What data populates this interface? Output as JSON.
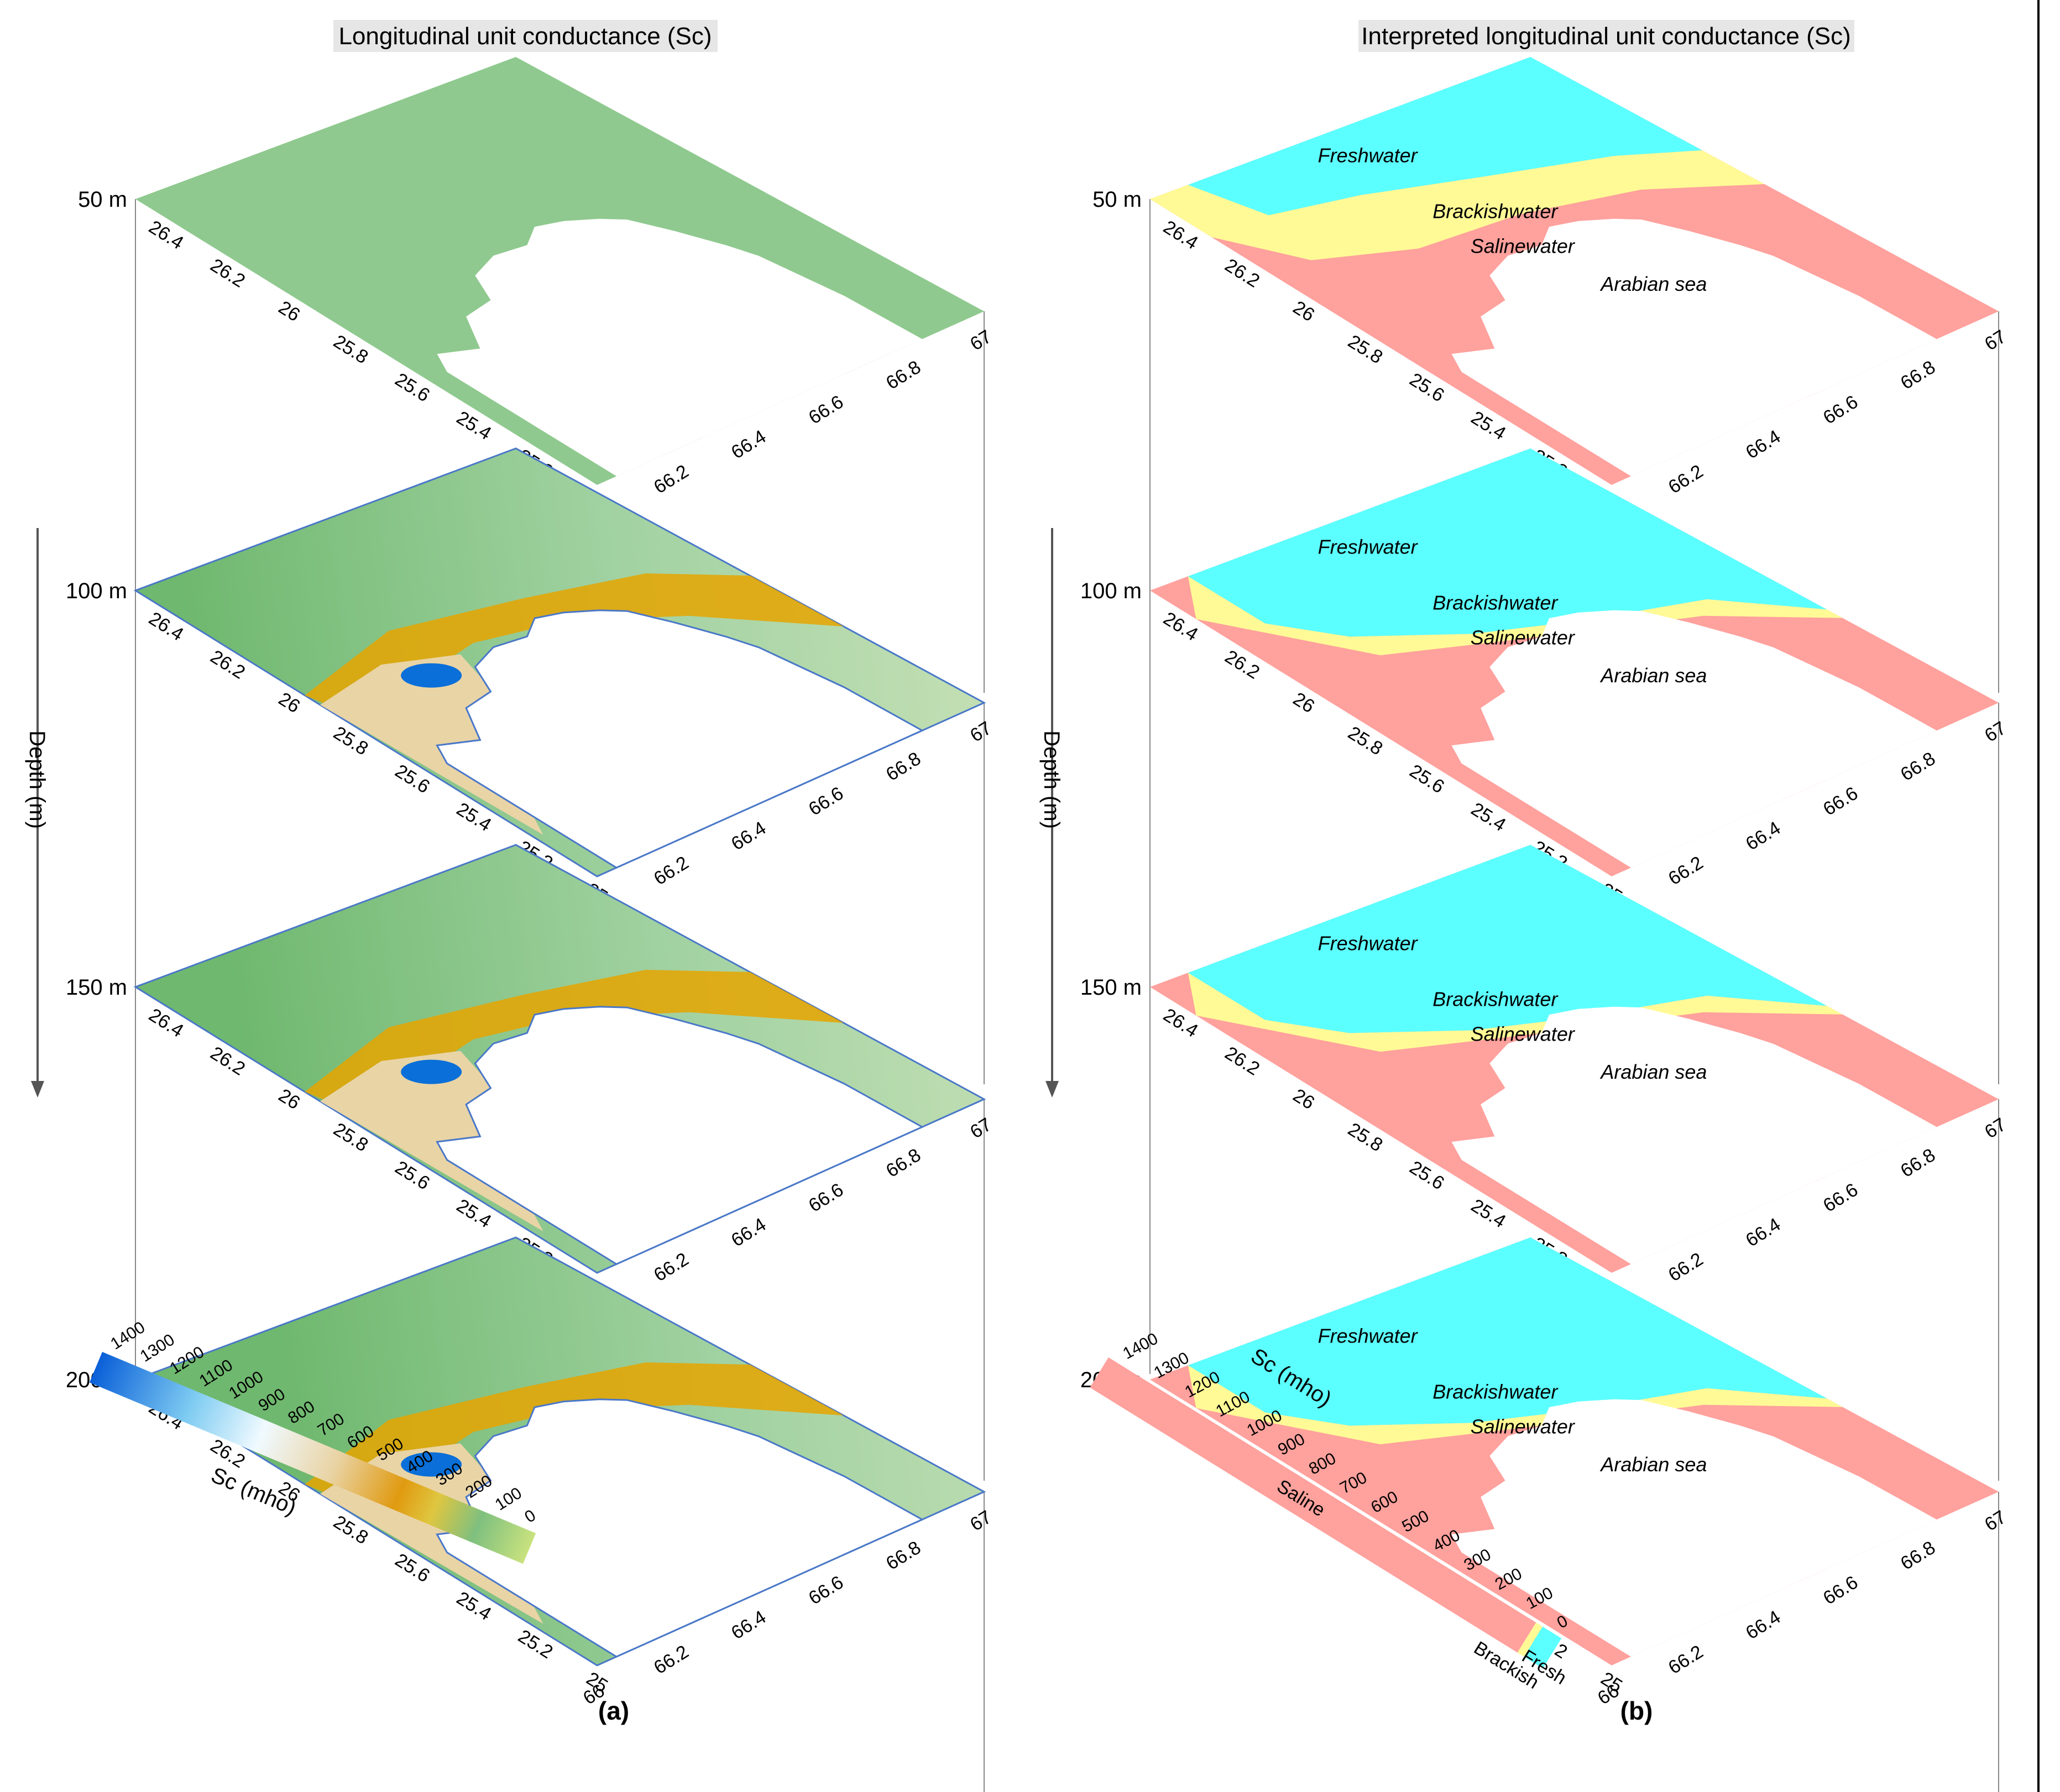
{
  "panel_a": {
    "title": "Longitudinal unit conductance (Sc)",
    "label": "(a)",
    "axis_title": "Depth (m)",
    "colorbar_label": "Sc (mho)"
  },
  "panel_b": {
    "title": "Interpreted longitudinal unit conductance (Sc)",
    "label": "(b)",
    "axis_title": "Depth (m)",
    "colorbar_label": "Sc (mho)",
    "cb_saline": "Saline",
    "cb_brackish": "Brackish",
    "cb_fresh": "Fresh"
  },
  "colors": {
    "fresh": "#5CFFFF",
    "brackish": "#FFFA96",
    "saline": "#FFA19D",
    "green": "#8FC98F",
    "lightgreen": "#A9D6A9",
    "gold": "#E6A400",
    "tan": "#E9D4A6",
    "blue": "#0A6FD8"
  },
  "chart_data": {
    "type": "heatmap",
    "layers": [
      {
        "depth": "50 m",
        "labels": {
          "fresh": "Freshwater",
          "brackish": "Brackishwater",
          "saline": "Salinewater",
          "sea": "Arabian sea"
        }
      },
      {
        "depth": "100 m",
        "labels": {
          "fresh": "Freshwater",
          "brackish": "Brackishwater",
          "saline": "Salinewater",
          "sea": "Arabian sea"
        }
      },
      {
        "depth": "150 m",
        "labels": {
          "fresh": "Freshwater",
          "brackish": "Brackishwater",
          "saline": "Salinewater",
          "sea": "Arabian sea"
        }
      },
      {
        "depth": "200 m",
        "labels": {
          "fresh": "Freshwater",
          "brackish": "Brackishwater",
          "saline": "Salinewater",
          "sea": "Arabian sea"
        }
      }
    ],
    "lat_ticks": [
      "26.4",
      "26.2",
      "26",
      "25.8",
      "25.6",
      "25.4",
      "25.2",
      "25"
    ],
    "lon_ticks": [
      "66",
      "66.2",
      "66.4",
      "66.6",
      "66.8",
      "67"
    ],
    "lat_range": [
      25,
      26.5
    ],
    "lon_range": [
      66,
      67
    ],
    "colorbar_ticks": [
      "1400",
      "1300",
      "1200",
      "1100",
      "1000",
      "900",
      "800",
      "700",
      "600",
      "500",
      "400",
      "300",
      "200",
      "100",
      "0"
    ],
    "colorbar_range": [
      0,
      1400
    ],
    "classes": [
      {
        "name": "Fresh",
        "range": [
          0,
          20
        ]
      },
      {
        "name": "Brackish",
        "range": [
          20,
          40
        ]
      },
      {
        "name": "Saline",
        "range": [
          40,
          1400
        ]
      }
    ]
  }
}
